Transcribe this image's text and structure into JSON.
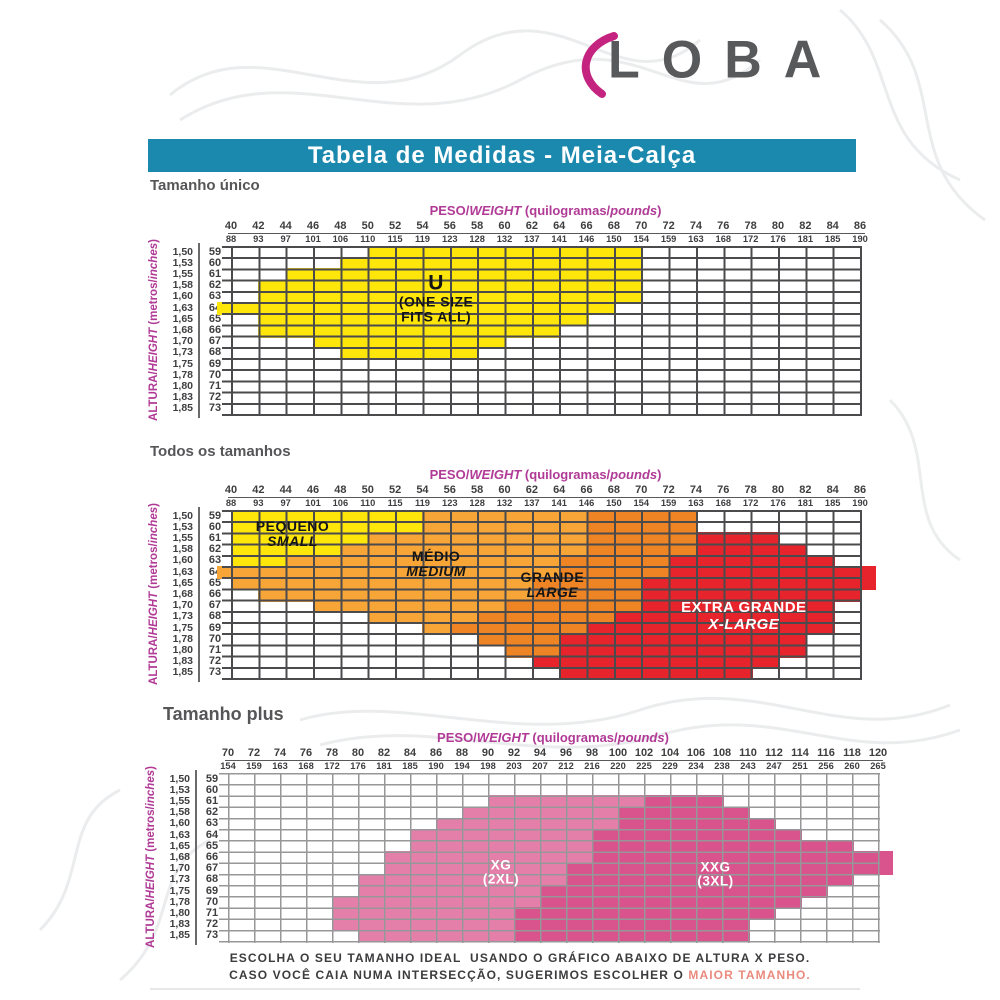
{
  "logo": {
    "text": "LOBA",
    "text_color": "#58595b",
    "swoosh_color": "#c4247f",
    "swoosh_icon": "magenta-arc"
  },
  "title_bar": {
    "text": "Tabela de Medidas - Meia-Calça",
    "bg": "#1b89ae",
    "text_color": "#ffffff"
  },
  "colors": {
    "teal": "#1b89ae",
    "axis_magenta": "#b03a96",
    "tick_text": "#3e3e40",
    "heading_text": "#565658",
    "grid_dark": "#4b4b4d",
    "grid_light": "#97979a",
    "yellow": "#ffe60a",
    "orange": "#f7a536",
    "dark_orange": "#ef8424",
    "red": "#e7242c",
    "pink": "#e47fa9",
    "dark_pink": "#d9538c",
    "logo_gray": "#58595b",
    "logo_pink": "#c4247f",
    "highlight": "#ea8a7e"
  },
  "footnote": {
    "line1": "ESCOLHA O SEU TAMANHO IDEAL  USANDO O GRÁFICO ABAIXO DE ALTURA X PESO.",
    "line2_prefix": "CASO VOCÊ CAIA NUMA INTERSECÇÃO, SUGERIMOS ESCOLHER O ",
    "line2_highlight": "MAIOR TAMANHO.",
    "highlight_color": "#ea8a7e"
  },
  "chart_data": [
    {
      "type": "heatmap",
      "heading": "Tamanho único",
      "x_label": "PESO/WEIGHT (quilogramas/pounds)",
      "y_label": "ALTURA/HEIGHT (metros/inches)",
      "x_axis": {
        "title_parts": [
          {
            "t": "PESO/"
          },
          {
            "t": "WEIGHT",
            "i": true
          },
          {
            "t": " (quilogramas/"
          },
          {
            "t": "pounds",
            "i": true
          },
          {
            "t": ")"
          }
        ],
        "kg": [
          40,
          42,
          44,
          46,
          48,
          50,
          52,
          54,
          56,
          58,
          60,
          62,
          64,
          66,
          68,
          70,
          72,
          74,
          76,
          78,
          80,
          82,
          84,
          86
        ],
        "lbs": [
          88,
          93,
          97,
          101,
          106,
          110,
          115,
          119,
          123,
          128,
          132,
          137,
          141,
          146,
          150,
          154,
          159,
          163,
          168,
          172,
          176,
          181,
          185,
          190
        ]
      },
      "y_axis": {
        "title_parts": [
          {
            "t": "ALTURA/"
          },
          {
            "t": "HEIGHT",
            "i": true
          },
          {
            "t": " (metros/"
          },
          {
            "t": "inches",
            "i": true
          },
          {
            "t": ")"
          }
        ],
        "meters": [
          "1,50",
          "1,53",
          "1,55",
          "1,58",
          "1,60",
          "1,63",
          "1,65",
          "1,68",
          "1,70",
          "1,73",
          "1,75",
          "1,78",
          "1,80",
          "1,83",
          "1,85"
        ],
        "inches": [
          59,
          60,
          61,
          62,
          63,
          64,
          65,
          66,
          67,
          68,
          69,
          70,
          71,
          72,
          73
        ]
      },
      "regions": [
        {
          "id": "one-size",
          "name": "U (ONE SIZE FITS ALL)",
          "color": "#ffe60a",
          "label": {
            "lines": [
              "U",
              "(ONE SIZE",
              "FITS ALL)"
            ],
            "kg": 55,
            "inch": 63.2,
            "color": "#151515",
            "size": 14,
            "big_first": true,
            "italic_from": null
          },
          "rows": {
            "59": [
              50,
              70
            ],
            "60": [
              48,
              70
            ],
            "61": [
              44,
              70
            ],
            "62": [
              42,
              70
            ],
            "63": [
              42,
              70
            ],
            "64": [
              39,
              68
            ],
            "65": [
              42,
              66
            ],
            "66": [
              42,
              64
            ],
            "67": [
              46,
              60
            ],
            "68": [
              48,
              58
            ]
          }
        }
      ]
    },
    {
      "type": "heatmap",
      "heading": "Todos os tamanhos",
      "x_label": "PESO/WEIGHT (quilogramas/pounds)",
      "y_label": "ALTURA/HEIGHT (metros/inches)",
      "x_axis": {
        "title_parts": [
          {
            "t": "PESO/"
          },
          {
            "t": "WEIGHT",
            "i": true
          },
          {
            "t": " (quilogramas/"
          },
          {
            "t": "pounds",
            "i": true
          },
          {
            "t": ")"
          }
        ],
        "kg": [
          40,
          42,
          44,
          46,
          48,
          50,
          52,
          54,
          56,
          58,
          60,
          62,
          64,
          66,
          68,
          70,
          72,
          74,
          76,
          78,
          80,
          82,
          84,
          86
        ],
        "lbs": [
          88,
          93,
          97,
          101,
          106,
          110,
          115,
          119,
          123,
          128,
          132,
          137,
          141,
          146,
          150,
          154,
          159,
          163,
          168,
          172,
          176,
          181,
          185,
          190
        ]
      },
      "y_axis": {
        "title_parts": [
          {
            "t": "ALTURA/"
          },
          {
            "t": "HEIGHT",
            "i": true
          },
          {
            "t": " (metros/"
          },
          {
            "t": "inches",
            "i": true
          },
          {
            "t": ")"
          }
        ],
        "meters": [
          "1,50",
          "1,53",
          "1,55",
          "1,58",
          "1,60",
          "1,63",
          "1,65",
          "1,68",
          "1,70",
          "1,73",
          "1,75",
          "1,78",
          "1,80",
          "1,83",
          "1,85"
        ],
        "inches": [
          59,
          60,
          61,
          62,
          63,
          64,
          65,
          66,
          67,
          68,
          69,
          70,
          71,
          72,
          73
        ]
      },
      "regions": [
        {
          "id": "pequeno",
          "name": "PEQUENO / SMALL",
          "color": "#ffe60a",
          "label": {
            "lines": [
              "PEQUENO",
              "SMALL"
            ],
            "kg": 44.5,
            "inch": 60.6,
            "color": "#151515",
            "size": 14,
            "big_first": false,
            "italic_from": 1
          },
          "rows": {
            "59": [
              40,
              54
            ],
            "60": [
              40,
              54
            ],
            "61": [
              40,
              50
            ],
            "62": [
              40,
              48
            ],
            "63": [
              40,
              44
            ]
          }
        },
        {
          "id": "medio",
          "name": "MÉDIO / MEDIUM",
          "color": "#f7a536",
          "label": {
            "lines": [
              "MÉDIO",
              "MEDIUM"
            ],
            "kg": 55,
            "inch": 63.3,
            "color": "#151515",
            "size": 14,
            "big_first": false,
            "italic_from": 1
          },
          "rows": {
            "59": [
              54,
              66
            ],
            "60": [
              54,
              66
            ],
            "61": [
              50,
              66
            ],
            "62": [
              48,
              66
            ],
            "63": [
              44,
              64
            ],
            "64": [
              39,
              64
            ],
            "65": [
              40,
              62
            ],
            "66": [
              42,
              62
            ],
            "67": [
              46,
              60
            ],
            "68": [
              50,
              58
            ],
            "69": [
              54,
              56
            ]
          }
        },
        {
          "id": "grande",
          "name": "GRANDE / LARGE",
          "color": "#ef8424",
          "label": {
            "lines": [
              "GRANDE",
              "LARGE"
            ],
            "kg": 63.5,
            "inch": 65.2,
            "color": "#151515",
            "size": 14,
            "big_first": false,
            "italic_from": 1
          },
          "rows": {
            "59": [
              66,
              74
            ],
            "60": [
              66,
              74
            ],
            "61": [
              66,
              74
            ],
            "62": [
              66,
              74
            ],
            "63": [
              64,
              72
            ],
            "64": [
              64,
              72
            ],
            "65": [
              62,
              70
            ],
            "66": [
              62,
              70
            ],
            "67": [
              60,
              70
            ],
            "68": [
              58,
              68
            ],
            "69": [
              56,
              66
            ],
            "70": [
              58,
              64
            ],
            "71": [
              60,
              64
            ]
          }
        },
        {
          "id": "extra-grande",
          "name": "EXTRA GRANDE / X-LARGE",
          "color": "#e7242c",
          "label": {
            "lines": [
              "EXTRA GRANDE",
              "X-LARGE"
            ],
            "kg": 77.5,
            "inch": 68,
            "color": "#ffffff",
            "size": 15,
            "big_first": false,
            "italic_from": 1
          },
          "rows": {
            "61": [
              74,
              80
            ],
            "62": [
              74,
              82
            ],
            "63": [
              72,
              84
            ],
            "64": [
              72,
              87
            ],
            "65": [
              70,
              87
            ],
            "66": [
              70,
              86
            ],
            "67": [
              70,
              84
            ],
            "68": [
              68,
              84
            ],
            "69": [
              66,
              84
            ],
            "70": [
              64,
              82
            ],
            "71": [
              64,
              82
            ],
            "72": [
              62,
              80
            ],
            "73": [
              64,
              78
            ]
          }
        }
      ]
    },
    {
      "type": "heatmap",
      "heading": "Tamanho plus",
      "x_label": "PESO/WEIGHT (quilogramas/pounds)",
      "y_label": "ALTURA/HEIGHT (metros/inches)",
      "x_axis": {
        "title_parts": [
          {
            "t": "PESO/"
          },
          {
            "t": "WEIGHT",
            "i": true
          },
          {
            "t": " (quilogramas/"
          },
          {
            "t": "pounds",
            "i": true
          },
          {
            "t": ")"
          }
        ],
        "kg": [
          70,
          72,
          74,
          76,
          78,
          80,
          82,
          84,
          86,
          88,
          90,
          92,
          94,
          96,
          98,
          100,
          102,
          104,
          106,
          108,
          110,
          112,
          114,
          116,
          118,
          120
        ],
        "lbs": [
          154,
          159,
          163,
          168,
          172,
          176,
          181,
          185,
          190,
          194,
          198,
          203,
          207,
          212,
          216,
          220,
          225,
          229,
          234,
          238,
          243,
          247,
          251,
          256,
          260,
          265
        ]
      },
      "y_axis": {
        "title_parts": [
          {
            "t": "ALTURA/"
          },
          {
            "t": "HEIGHT",
            "i": true
          },
          {
            "t": " (metros/"
          },
          {
            "t": "inches",
            "i": true
          },
          {
            "t": ")"
          }
        ],
        "meters": [
          "1,50",
          "1,53",
          "1,55",
          "1,58",
          "1,60",
          "1,63",
          "1,65",
          "1,68",
          "1,70",
          "1,73",
          "1,75",
          "1,78",
          "1,80",
          "1,83",
          "1,85"
        ],
        "inches": [
          59,
          60,
          61,
          62,
          63,
          64,
          65,
          66,
          67,
          68,
          69,
          70,
          71,
          72,
          73
        ]
      },
      "regions": [
        {
          "id": "xg",
          "name": "XG (2XL)",
          "color": "#e47fa9",
          "label": {
            "lines": [
              "XG",
              "(2XL)"
            ],
            "kg": 91,
            "inch": 67.4,
            "color": "#ffffff",
            "size": 13.5,
            "big_first": false,
            "italic_from": null
          },
          "rows": {
            "61": [
              90,
              102
            ],
            "62": [
              88,
              100
            ],
            "63": [
              86,
              100
            ],
            "64": [
              84,
              98
            ],
            "65": [
              84,
              98
            ],
            "66": [
              82,
              98
            ],
            "67": [
              82,
              96
            ],
            "68": [
              80,
              96
            ],
            "69": [
              80,
              94
            ],
            "70": [
              78,
              94
            ],
            "71": [
              78,
              92
            ],
            "72": [
              78,
              92
            ],
            "73": [
              80,
              92
            ]
          }
        },
        {
          "id": "xxg",
          "name": "XXG (3XL)",
          "color": "#d9538c",
          "label": {
            "lines": [
              "XXG",
              "(3XL)"
            ],
            "kg": 107.5,
            "inch": 67.6,
            "color": "#ffffff",
            "size": 13.5,
            "big_first": false,
            "italic_from": null
          },
          "rows": {
            "61": [
              102,
              108
            ],
            "62": [
              100,
              110
            ],
            "63": [
              100,
              112
            ],
            "64": [
              98,
              114
            ],
            "65": [
              98,
              118
            ],
            "66": [
              98,
              121
            ],
            "67": [
              96,
              121
            ],
            "68": [
              96,
              118
            ],
            "69": [
              94,
              116
            ],
            "70": [
              94,
              114
            ],
            "71": [
              92,
              112
            ],
            "72": [
              92,
              110
            ],
            "73": [
              92,
              110
            ]
          }
        }
      ]
    }
  ]
}
